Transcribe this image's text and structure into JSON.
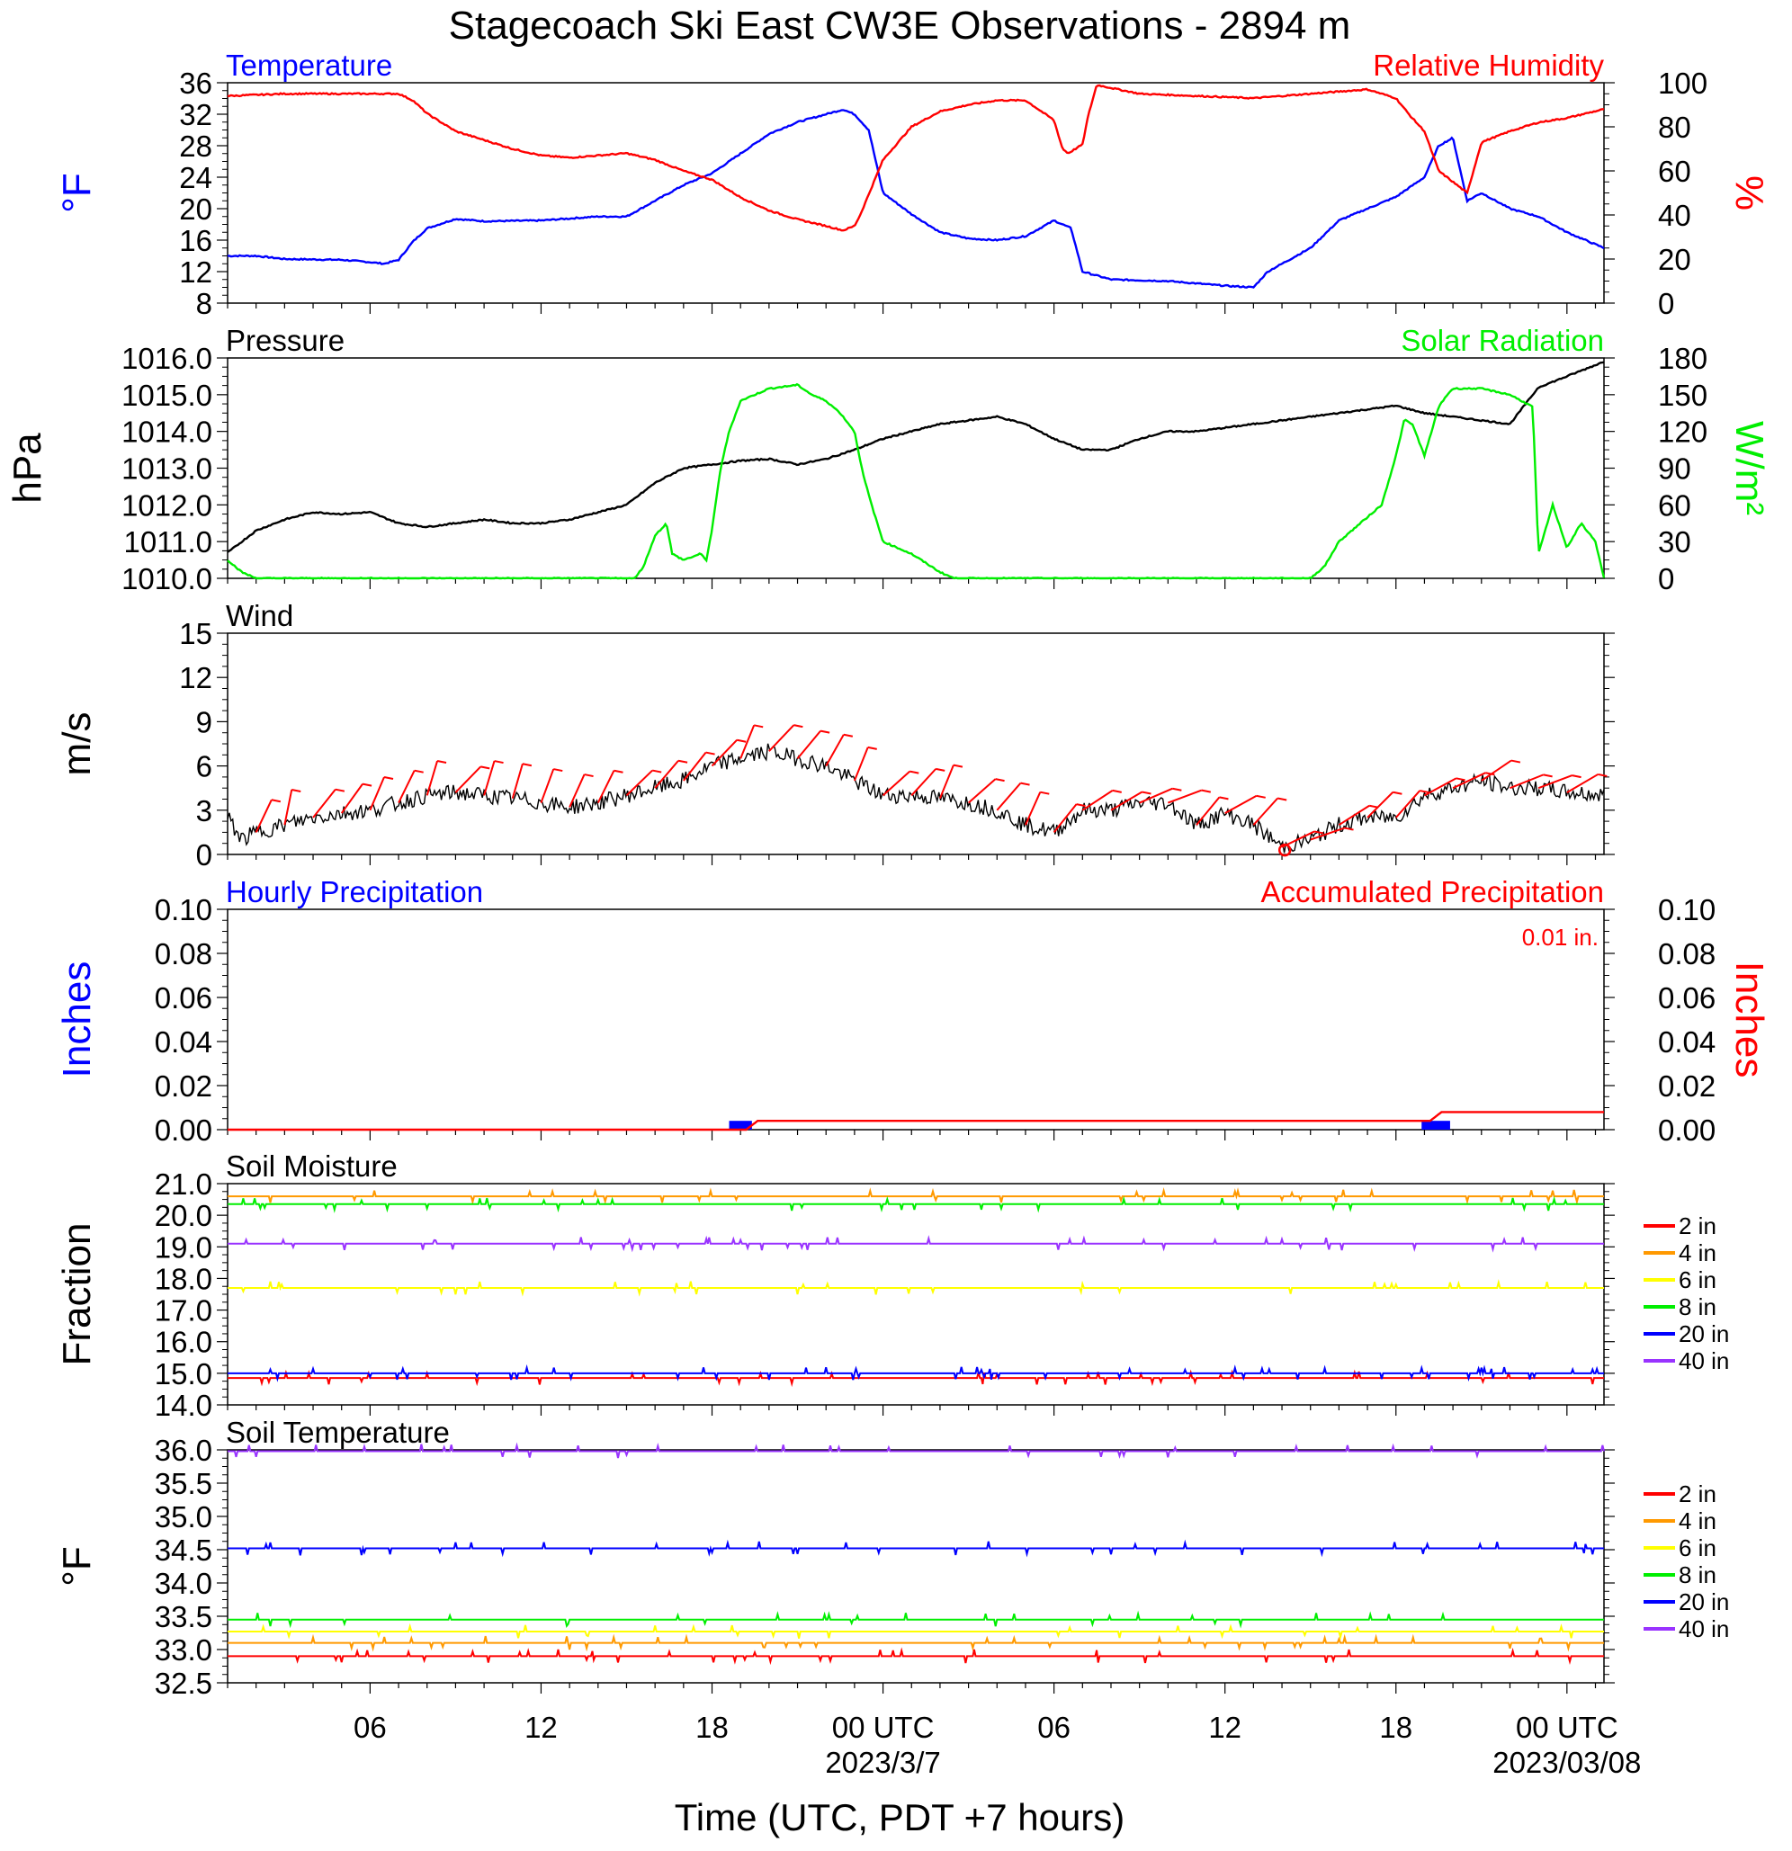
{
  "title": "Stagecoach Ski East CW3E Observations - 2894 m",
  "x_axis": {
    "label": "Time (UTC, PDT +7 hours)",
    "ticks": [
      {
        "h": 6,
        "label": "06",
        "sub": ""
      },
      {
        "h": 12,
        "label": "12",
        "sub": ""
      },
      {
        "h": 18,
        "label": "18",
        "sub": ""
      },
      {
        "h": 24,
        "label": "00 UTC",
        "sub": "2023/3/7"
      },
      {
        "h": 30,
        "label": "06",
        "sub": ""
      },
      {
        "h": 36,
        "label": "12",
        "sub": ""
      },
      {
        "h": 42,
        "label": "18",
        "sub": ""
      },
      {
        "h": 48,
        "label": "00 UTC",
        "sub": "2023/03/08"
      }
    ],
    "range_hours": [
      1,
      49.3
    ]
  },
  "colors": {
    "blue": "#0000ff",
    "red": "#ff0000",
    "green": "#00ee00",
    "black": "#000000",
    "orange": "#ff9900",
    "yellow": "#ffff00",
    "purple": "#9933ff"
  },
  "chart_data": [
    {
      "type": "line",
      "panel": "temperature_rh",
      "left_title": "Temperature",
      "right_title": "Relative Humidity",
      "ylabel_left": "°F",
      "ylabel_right": "%",
      "ylim_left": [
        8,
        36
      ],
      "ylim_right": [
        0,
        100
      ],
      "yticks_left": [
        "8",
        "12",
        "16",
        "20",
        "24",
        "28",
        "32",
        "36"
      ],
      "yticks_right": [
        "0",
        "20",
        "40",
        "60",
        "80",
        "100"
      ],
      "series": [
        {
          "name": "Temperature",
          "axis": "left",
          "color": "#0000ff",
          "x": [
            1,
            2,
            3,
            5,
            6,
            6.5,
            7,
            7.5,
            8,
            9,
            10,
            12,
            14,
            15,
            16,
            17,
            18,
            19,
            20,
            21,
            22,
            22.6,
            23,
            23.5,
            24,
            25,
            26,
            27,
            28,
            29,
            30,
            30.6,
            31,
            32,
            34,
            35,
            36,
            37,
            37.5,
            38,
            39,
            40,
            41,
            42,
            43,
            43.5,
            44,
            44.5,
            45,
            46,
            47,
            48,
            49.3
          ],
          "y": [
            14,
            14,
            13.6,
            13.5,
            13.2,
            13,
            13.5,
            15.8,
            17.5,
            18.7,
            18.4,
            18.5,
            19,
            19,
            21,
            23,
            24.5,
            27,
            29.5,
            31,
            32,
            32.6,
            32,
            30,
            22,
            19.3,
            17,
            16.2,
            16,
            16.5,
            18.5,
            17.5,
            12,
            11,
            10.8,
            10.5,
            10.2,
            10,
            12,
            13,
            15,
            18.5,
            20,
            21.5,
            24,
            28,
            29,
            21,
            22,
            20,
            19,
            17,
            15
          ]
        },
        {
          "name": "Relative Humidity",
          "axis": "right",
          "color": "#ff0000",
          "x": [
            1,
            3,
            5,
            7,
            7.5,
            8,
            9,
            10,
            11,
            12,
            13,
            14,
            15,
            16,
            17,
            18,
            19,
            20,
            21,
            22,
            22.6,
            23,
            23.2,
            24,
            25,
            26,
            27,
            28,
            29,
            30,
            30.3,
            30.5,
            31,
            31.2,
            31.5,
            33,
            35,
            37,
            39,
            41,
            42,
            42.5,
            43,
            43.5,
            44,
            44.5,
            45,
            46,
            47,
            48,
            49.3
          ],
          "y": [
            94,
            95,
            95,
            95,
            92,
            86,
            78,
            74,
            70,
            67,
            66,
            67,
            68,
            65,
            60,
            56,
            48,
            42,
            38,
            35,
            33,
            35,
            40,
            65,
            80,
            87,
            90,
            92,
            92,
            83,
            70,
            68,
            72,
            85,
            99,
            95,
            94,
            93,
            95,
            97,
            93,
            85,
            78,
            60,
            55,
            50,
            73,
            78,
            82,
            84,
            88
          ]
        }
      ]
    },
    {
      "type": "line",
      "panel": "pressure_solar",
      "left_title": "Pressure",
      "right_title": "Solar Radiation",
      "ylabel_left": "hPa",
      "ylabel_right": "W/m²",
      "ylim_left": [
        1010,
        1016
      ],
      "ylim_right": [
        0,
        180
      ],
      "yticks_left": [
        "1010.0",
        "1011.0",
        "1012.0",
        "1013.0",
        "1014.0",
        "1015.0",
        "1016.0"
      ],
      "yticks_right": [
        "0",
        "30",
        "60",
        "90",
        "120",
        "150",
        "180"
      ],
      "series": [
        {
          "name": "Pressure",
          "axis": "left",
          "color": "#000000",
          "x": [
            1,
            2,
            3,
            4,
            5,
            6,
            7,
            8,
            9,
            10,
            11,
            12,
            13,
            14,
            15,
            16,
            17,
            18,
            19,
            20,
            21,
            22,
            23,
            24,
            25,
            26,
            27,
            28,
            29,
            30,
            31,
            32,
            33,
            34,
            35,
            36,
            37,
            38,
            39,
            40,
            41,
            42,
            43,
            44,
            45,
            46,
            47,
            48,
            49.3
          ],
          "y": [
            1010.7,
            1011.3,
            1011.6,
            1011.8,
            1011.75,
            1011.8,
            1011.5,
            1011.4,
            1011.5,
            1011.6,
            1011.5,
            1011.5,
            1011.6,
            1011.8,
            1012.0,
            1012.6,
            1013.0,
            1013.1,
            1013.2,
            1013.25,
            1013.1,
            1013.25,
            1013.5,
            1013.8,
            1014.0,
            1014.2,
            1014.3,
            1014.4,
            1014.2,
            1013.8,
            1013.5,
            1013.5,
            1013.8,
            1014.0,
            1014.0,
            1014.1,
            1014.2,
            1014.3,
            1014.4,
            1014.5,
            1014.6,
            1014.7,
            1014.5,
            1014.4,
            1014.3,
            1014.2,
            1015.2,
            1015.5,
            1015.9
          ]
        },
        {
          "name": "Solar Radiation",
          "axis": "right",
          "color": "#00ee00",
          "x": [
            1,
            1.5,
            2,
            10,
            14,
            15.3,
            15.6,
            16,
            16.4,
            16.6,
            17,
            17.6,
            17.8,
            18,
            18.3,
            18.6,
            19,
            20,
            21,
            21.5,
            22,
            22.5,
            23,
            23.3,
            23.6,
            24,
            25,
            26,
            26.5,
            27,
            38,
            39,
            39.5,
            40,
            40.5,
            41,
            41.5,
            42,
            42.3,
            42.6,
            43,
            43.5,
            43.8,
            44,
            45,
            46,
            46.8,
            47,
            47.5,
            48,
            48.5,
            49,
            49.3
          ],
          "y": [
            15,
            5,
            0,
            0,
            0,
            0,
            10,
            35,
            45,
            20,
            15,
            20,
            15,
            40,
            90,
            120,
            145,
            155,
            158,
            150,
            145,
            135,
            120,
            85,
            60,
            30,
            20,
            5,
            0,
            0,
            0,
            0,
            10,
            30,
            40,
            50,
            60,
            100,
            130,
            125,
            100,
            140,
            150,
            155,
            155,
            150,
            140,
            20,
            60,
            25,
            45,
            30,
            0
          ]
        }
      ]
    },
    {
      "type": "line",
      "panel": "wind",
      "left_title": "Wind",
      "ylabel_left": "m/s",
      "ylim_left": [
        0,
        15
      ],
      "yticks_left": [
        "0",
        "3",
        "6",
        "9",
        "12",
        "15"
      ],
      "series": [
        {
          "name": "Wind",
          "axis": "left",
          "color": "#000000",
          "x": [
            1,
            1.5,
            2,
            3,
            4,
            5,
            6,
            7,
            8,
            9,
            10,
            11,
            12,
            13,
            14,
            15,
            16,
            17,
            18,
            19,
            20,
            21,
            22,
            23,
            24,
            25,
            26,
            27,
            28,
            29,
            30,
            31,
            32,
            33,
            34,
            35,
            36,
            37,
            38,
            39,
            40,
            41,
            42,
            43,
            44,
            45,
            46,
            47,
            48,
            49.3
          ],
          "y": [
            2.5,
            1,
            1.5,
            2,
            2.5,
            2.8,
            3,
            3.5,
            4,
            4.2,
            4,
            3.8,
            3.5,
            3.2,
            3.5,
            4,
            4.5,
            5,
            6,
            6.5,
            7,
            6.5,
            6,
            5,
            4,
            4,
            3.8,
            3.5,
            3,
            2,
            1.5,
            3,
            3,
            3.5,
            3.5,
            2,
            2.8,
            2,
            0.5,
            1,
            2,
            2.5,
            2.5,
            4,
            4.5,
            5,
            4.5,
            4.5,
            4.2,
            4
          ]
        }
      ]
    },
    {
      "type": "line",
      "panel": "precipitation",
      "left_title": "Hourly Precipitation",
      "right_title": "Accumulated Precipitation",
      "total_label": "0.01 in.",
      "ylabel_left": "Inches",
      "ylabel_right": "Inches",
      "ylim_left": [
        0,
        0.1
      ],
      "ylim_right": [
        0,
        0.1
      ],
      "yticks_left": [
        "0.00",
        "0.02",
        "0.04",
        "0.06",
        "0.08",
        "0.10"
      ],
      "yticks_right": [
        "0.00",
        "0.02",
        "0.04",
        "0.06",
        "0.08",
        "0.10"
      ],
      "series": [
        {
          "name": "Hourly Precipitation",
          "axis": "left",
          "color": "#0000ff",
          "bars": [
            {
              "x0": 18.6,
              "x1": 19.4,
              "y": 0.004
            },
            {
              "x0": 42.9,
              "x1": 43.9,
              "y": 0.004
            }
          ]
        },
        {
          "name": "Accumulated Precipitation",
          "axis": "right",
          "color": "#ff0000",
          "x": [
            1,
            19.2,
            19.6,
            43.2,
            43.6,
            49.3
          ],
          "y": [
            0,
            0,
            0.004,
            0.004,
            0.008,
            0.008
          ]
        }
      ]
    },
    {
      "type": "line",
      "panel": "soil_moisture",
      "left_title": "Soil Moisture",
      "ylabel_left": "Fraction",
      "ylim_left": [
        14,
        21
      ],
      "yticks_left": [
        "14.0",
        "15.0",
        "16.0",
        "17.0",
        "18.0",
        "19.0",
        "20.0",
        "21.0"
      ],
      "legend": [
        "2 in",
        "4 in",
        "6 in",
        "8 in",
        "20 in",
        "40 in"
      ],
      "series": [
        {
          "name": "2 in",
          "color": "#ff0000",
          "level": 14.85
        },
        {
          "name": "4 in",
          "color": "#ff9900",
          "level": 20.6
        },
        {
          "name": "6 in",
          "color": "#ffff00",
          "level": 17.7
        },
        {
          "name": "8 in",
          "color": "#00ee00",
          "level": 20.35
        },
        {
          "name": "20 in",
          "color": "#0000ff",
          "level": 15.0
        },
        {
          "name": "40 in",
          "color": "#9933ff",
          "level": 19.1
        }
      ]
    },
    {
      "type": "line",
      "panel": "soil_temperature",
      "left_title": "Soil Temperature",
      "ylabel_left": "°F",
      "ylim_left": [
        32.5,
        36
      ],
      "yticks_left": [
        "32.5",
        "33.0",
        "33.5",
        "34.0",
        "34.5",
        "35.0",
        "35.5",
        "36.0"
      ],
      "legend": [
        "2 in",
        "4 in",
        "6 in",
        "8 in",
        "20 in",
        "40 in"
      ],
      "series": [
        {
          "name": "2 in",
          "color": "#ff0000",
          "level": 32.9
        },
        {
          "name": "4 in",
          "color": "#ff9900",
          "level": 33.1
        },
        {
          "name": "6 in",
          "color": "#ffff00",
          "level": 33.27
        },
        {
          "name": "8 in",
          "color": "#00ee00",
          "level": 33.45
        },
        {
          "name": "20 in",
          "color": "#0000ff",
          "level": 34.52
        },
        {
          "name": "40 in",
          "color": "#9933ff",
          "level": 35.98
        }
      ]
    }
  ]
}
